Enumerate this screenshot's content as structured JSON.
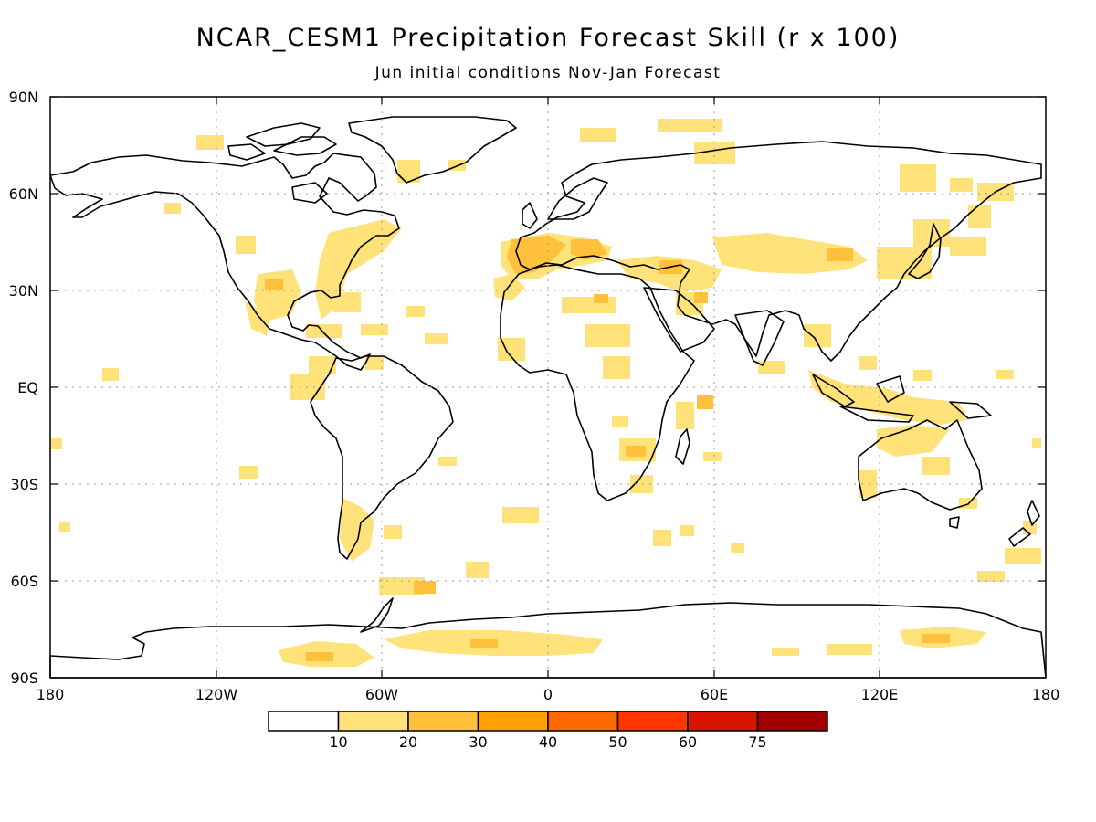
{
  "title": "NCAR_CESM1 Precipitation Forecast Skill (r x 100)",
  "subtitle": "Jun initial conditions  Nov-Jan Forecast",
  "map": {
    "lat_labels": [
      "90N",
      "60N",
      "30N",
      "EQ",
      "30S",
      "60S",
      "90S"
    ],
    "lon_labels": [
      "180",
      "120W",
      "60W",
      "0",
      "60E",
      "120E",
      "180"
    ],
    "grid": "dotted"
  },
  "colorbar": {
    "labels": [
      "10",
      "20",
      "30",
      "40",
      "50",
      "60",
      "75"
    ],
    "colors": [
      "#ffffff",
      "#ffe27a",
      "#ffc03c",
      "#ffa000",
      "#ff6a00",
      "#ff3500",
      "#d81600",
      "#a00000"
    ]
  }
}
